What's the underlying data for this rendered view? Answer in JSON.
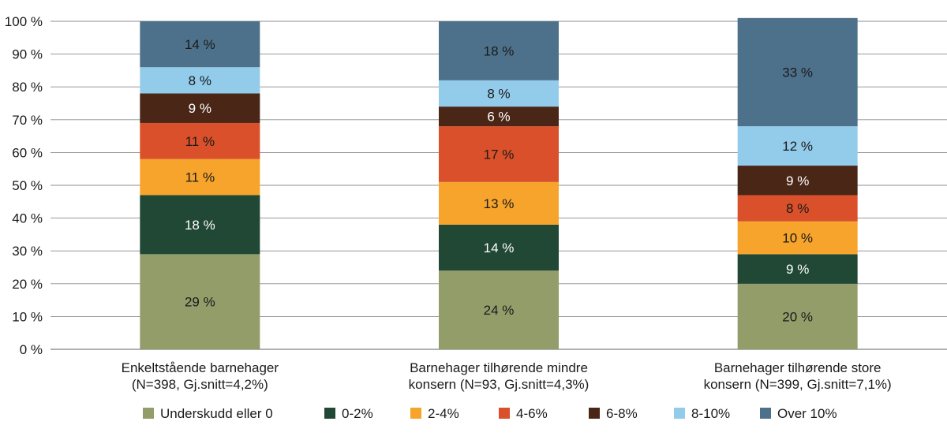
{
  "chart_data": {
    "type": "bar",
    "stacked": true,
    "categories": [
      [
        "Enkeltstående barnehager",
        "(N=398, Gj.snitt=4,2%)"
      ],
      [
        "Barnehager tilhørende mindre",
        "konsern (N=93, Gj.snitt=4,3%)"
      ],
      [
        "Barnehager tilhørende store",
        "konsern (N=399, Gj.snitt=7,1%)"
      ]
    ],
    "series": [
      {
        "name": "Underskudd eller 0",
        "color": "#939d6a",
        "label_color": "#1a1a1a",
        "values": [
          29,
          24,
          20
        ],
        "labels": [
          "29 %",
          "24 %",
          "20 %"
        ]
      },
      {
        "name": "0-2%",
        "color": "#214735",
        "label_color": "#ffffff",
        "values": [
          18,
          14,
          9
        ],
        "labels": [
          "18 %",
          "14 %",
          "9 %"
        ]
      },
      {
        "name": "2-4%",
        "color": "#f6a42c",
        "label_color": "#1a1a1a",
        "values": [
          11,
          13,
          10
        ],
        "labels": [
          "11 %",
          "13 %",
          "10 %"
        ]
      },
      {
        "name": "4-6%",
        "color": "#d9502a",
        "label_color": "#1a1a1a",
        "values": [
          11,
          17,
          8
        ],
        "labels": [
          "11 %",
          "17 %",
          "8 %"
        ]
      },
      {
        "name": "6-8%",
        "color": "#4a2617",
        "label_color": "#ffffff",
        "values": [
          9,
          6,
          9
        ],
        "labels": [
          "9 %",
          "6 %",
          "9 %"
        ]
      },
      {
        "name": "8-10%",
        "color": "#93cbea",
        "label_color": "#1a1a1a",
        "values": [
          8,
          8,
          12
        ],
        "labels": [
          "8 %",
          "8 %",
          "12 %"
        ]
      },
      {
        "name": "Over 10%",
        "color": "#4e718b",
        "label_color": "#1a1a1a",
        "values": [
          14,
          18,
          33
        ],
        "labels": [
          "14 %",
          "18 %",
          "33 %"
        ]
      }
    ],
    "yticks": [
      "0 %",
      "10 %",
      "20 %",
      "30 %",
      "40 %",
      "50 %",
      "60 %",
      "70 %",
      "80 %",
      "90 %",
      "100 %"
    ],
    "ylim": [
      0,
      100
    ],
    "grid": true,
    "legend_position": "bottom"
  }
}
